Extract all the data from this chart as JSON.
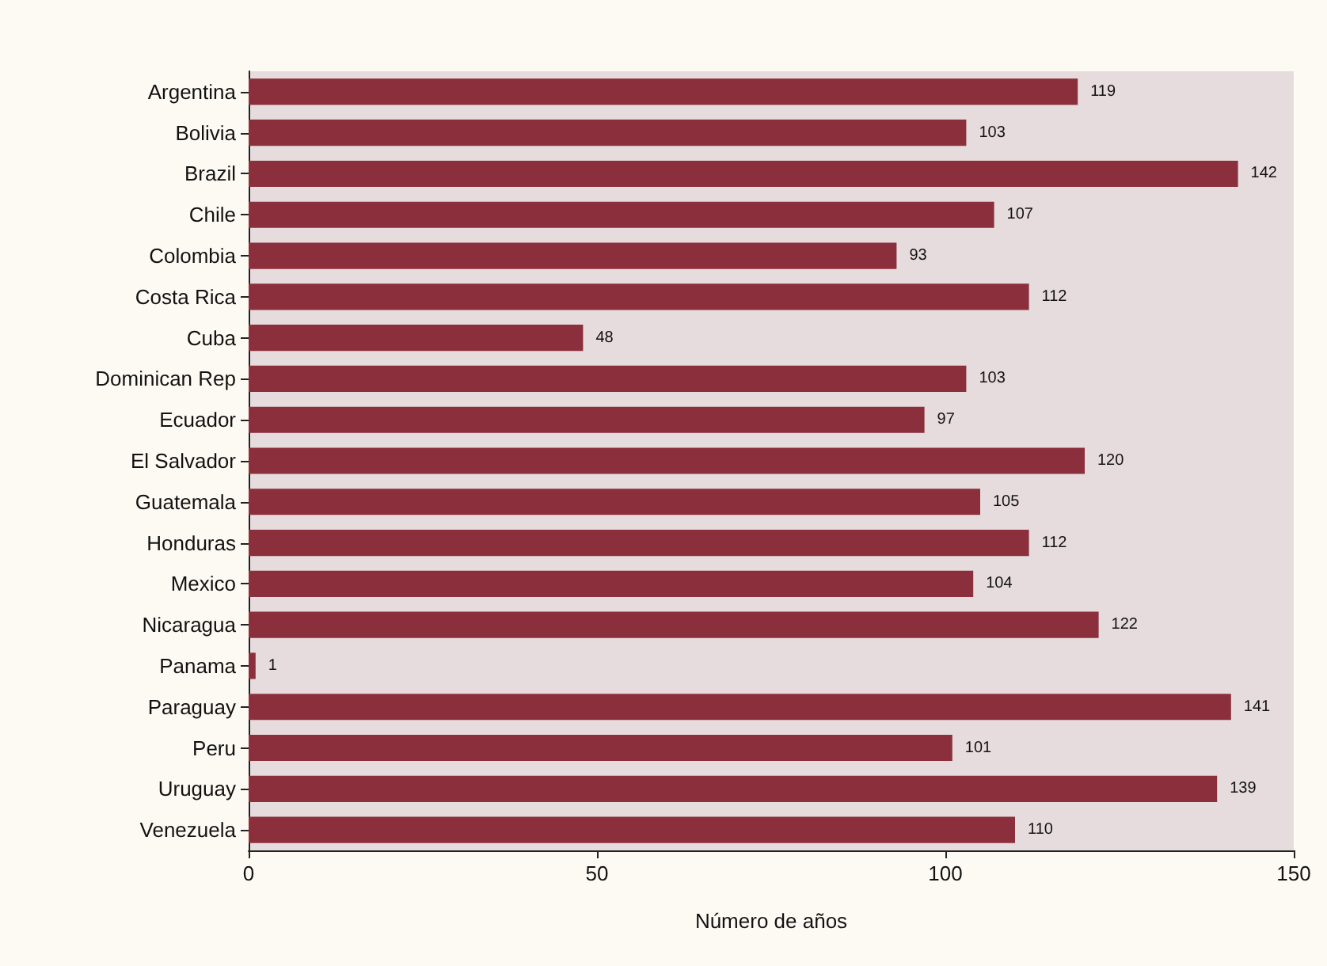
{
  "chart_data": {
    "type": "bar",
    "orientation": "horizontal",
    "xlabel": "Número de años",
    "categories": [
      "Argentina",
      "Bolivia",
      "Brazil",
      "Chile",
      "Colombia",
      "Costa Rica",
      "Cuba",
      "Dominican Rep",
      "Ecuador",
      "El Salvador",
      "Guatemala",
      "Honduras",
      "Mexico",
      "Nicaragua",
      "Panama",
      "Paraguay",
      "Peru",
      "Uruguay",
      "Venezuela"
    ],
    "values": [
      119,
      103,
      142,
      107,
      93,
      112,
      48,
      103,
      97,
      120,
      105,
      112,
      104,
      122,
      1,
      141,
      101,
      139,
      110
    ],
    "color": "#8c2f3c",
    "xlim": [
      0,
      150
    ],
    "xticks": [
      0,
      50,
      100,
      150
    ],
    "data_labels": true,
    "grid": false
  }
}
